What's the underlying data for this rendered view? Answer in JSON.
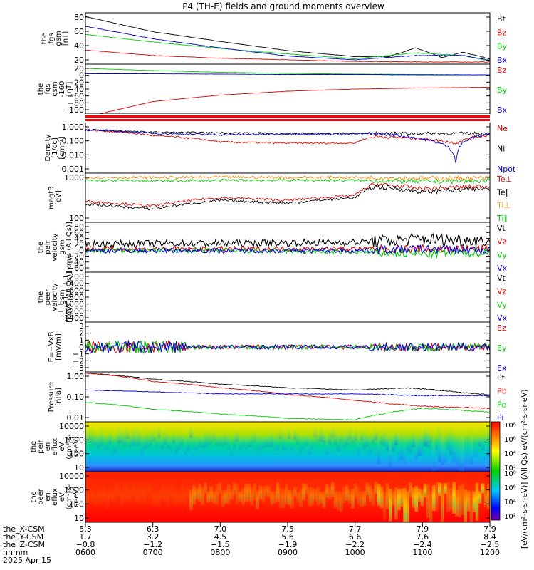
{
  "title": "P4 (TH-E) fields and ground moments overview",
  "colors": {
    "black": "#000000",
    "red": "#e00000",
    "green": "#00cc00",
    "blue": "#0000e0",
    "orange": "#ff8c00"
  },
  "panels": [
    {
      "id": "fgs",
      "ylabel": [
        "the",
        "fgs",
        "gsm",
        "[nT]"
      ],
      "yticks": [
        "80",
        "60",
        "40",
        "20"
      ],
      "legend": [
        {
          "t": "Bt",
          "c": "black"
        },
        {
          "t": "Bz",
          "c": "red"
        },
        {
          "t": "By",
          "c": "green"
        },
        {
          "t": "Bx",
          "c": "blue"
        }
      ]
    },
    {
      "id": "fgs2",
      "ylabel": [
        "the",
        "fgs",
        "gsm",
        "-160",
        "[nT]"
      ],
      "yticks": [
        "20",
        "0",
        "−20",
        "−40",
        "−60",
        "−80",
        "−100"
      ],
      "legend": [
        {
          "t": "Bz",
          "c": "red"
        },
        {
          "t": "By",
          "c": "green"
        },
        {
          "t": "Bx",
          "c": "blue"
        }
      ]
    },
    {
      "id": "density",
      "ylabel": [
        "Density",
        "[1/cc]",
        "[cm⁻³]"
      ],
      "yticks": [
        "1.000",
        "0.100",
        "0.010",
        "0.001"
      ],
      "legend": [
        {
          "t": "Ne",
          "c": "red"
        },
        {
          "t": "Ni",
          "c": "black"
        },
        {
          "t": "Npot",
          "c": "blue"
        }
      ]
    },
    {
      "id": "temp",
      "ylabel": [
        "magt3",
        "[eV]"
      ],
      "yticks": [
        "1000",
        "100"
      ],
      "legend": [
        {
          "t": "Te⊥",
          "c": "red"
        },
        {
          "t": "Te∥",
          "c": "black"
        },
        {
          "t": "Ti⊥",
          "c": "orange"
        },
        {
          "t": "Ti∥",
          "c": "green"
        }
      ]
    },
    {
      "id": "peir_v",
      "ylabel": [
        "the",
        "peir",
        "velocity",
        "gsm",
        "[km/s (All Qs)]"
      ],
      "yticks": [
        "80",
        "60",
        "40",
        "20",
        "0",
        "−20",
        "−40",
        "−60"
      ],
      "legend": [
        {
          "t": "Vt",
          "c": "black"
        },
        {
          "t": "Vz",
          "c": "red"
        },
        {
          "t": "Vy",
          "c": "green"
        },
        {
          "t": "Vx",
          "c": "blue"
        }
      ]
    },
    {
      "id": "peer_v",
      "ylabel": [
        "the",
        "peer",
        "velocity",
        "gsm",
        "[km/s (All Qs)]"
      ],
      "yticks": [
        "−200",
        "−400",
        "−600",
        "−800",
        "−1000",
        "−1200",
        "−1400"
      ],
      "legend": [
        {
          "t": "Vt",
          "c": "black"
        },
        {
          "t": "Vz",
          "c": "red"
        },
        {
          "t": "Vy",
          "c": "green"
        },
        {
          "t": "Vx",
          "c": "blue"
        }
      ]
    },
    {
      "id": "efield",
      "ylabel": [
        "E=−VxB",
        "[mV/m]"
      ],
      "yticks": [
        "3",
        "2",
        "1",
        "0",
        "−1",
        "−2",
        "−3"
      ],
      "legend": [
        {
          "t": "Ez",
          "c": "red"
        },
        {
          "t": "Ey",
          "c": "green"
        },
        {
          "t": "Ex",
          "c": "blue"
        }
      ]
    },
    {
      "id": "pressure",
      "ylabel": [
        "Pressure",
        "[nPa]"
      ],
      "yticks": [
        "1.00",
        "0.10",
        "0.01"
      ],
      "legend": [
        {
          "t": "Pt",
          "c": "black"
        },
        {
          "t": "Pb",
          "c": "red"
        },
        {
          "t": "Pe",
          "c": "green"
        },
        {
          "t": "Pi",
          "c": "blue"
        }
      ]
    },
    {
      "id": "peir_spec",
      "ylabel": [
        "the",
        "peir",
        "en",
        "eflux",
        "eV",
        "(cm²-s-",
        "sr-eV)"
      ],
      "yticks": [
        "10000",
        "1000",
        "100",
        "10"
      ]
    },
    {
      "id": "peer_spec",
      "ylabel": [
        "the",
        "peer",
        "en",
        "eflux",
        "eV",
        "(cm²-s-",
        "sr-eV)"
      ],
      "yticks": [
        "10000",
        "1000",
        "100",
        "10"
      ]
    }
  ],
  "colorbar": {
    "ticks": [
      "10⁸",
      "10⁶",
      "10⁴",
      "10²"
    ],
    "label": "[eV/(cm²-s-sr-eV)] (All Qs) eV/(cm²-s-sr-eV)"
  },
  "xaxis": {
    "row_labels": [
      "the_X-CSM",
      "the_Y-CSM",
      "the_Z-CSM",
      "hhmm",
      "2025 Apr 15"
    ],
    "x_csm": [
      "5.3",
      "6.3",
      "7.0",
      "7.5",
      "7.7",
      "7.9",
      "7.9"
    ],
    "y_csm": [
      "1.7",
      "3.2",
      "4.5",
      "5.6",
      "6.6",
      "7.6",
      "8.4"
    ],
    "z_csm": [
      "−0.8",
      "−1.2",
      "−1.5",
      "−1.9",
      "−2.2",
      "−2.4",
      "−2.5"
    ],
    "hhmm": [
      "0600",
      "0700",
      "0800",
      "0900",
      "1000",
      "1100",
      "1200"
    ]
  },
  "chart_data": {
    "type": "line",
    "title": "P4 (TH-E) fields and ground moments overview",
    "date": "2025 Apr 15",
    "x_time": [
      "0600",
      "0700",
      "0800",
      "0900",
      "1000",
      "1100",
      "1200"
    ],
    "panels": {
      "fgs_gsm_nT": {
        "ylim": [
          0,
          95
        ],
        "series": [
          {
            "name": "Bt",
            "x": [
              6,
              7,
              8,
              9,
              10,
              10.5,
              10.9,
              11.3,
              11.6,
              12
            ],
            "values": [
              88,
              60,
              42,
              25,
              14,
              14,
              30,
              12,
              22,
              10
            ]
          },
          {
            "name": "Bz",
            "x": [
              6,
              7,
              8,
              9,
              10,
              11,
              12
            ],
            "values": [
              26,
              16,
              11,
              8,
              5,
              4,
              4
            ]
          },
          {
            "name": "By",
            "x": [
              6,
              7,
              8,
              9,
              10,
              10.9,
              11.6,
              12
            ],
            "values": [
              55,
              41,
              29,
              19,
              10,
              21,
              16,
              6
            ]
          },
          {
            "name": "Bx",
            "x": [
              6,
              7,
              8,
              9,
              10,
              10.9,
              11.6,
              12
            ],
            "values": [
              70,
              47,
              30,
              15,
              8,
              16,
              16,
              7
            ]
          }
        ]
      },
      "fgs_gsm_minus160_nT": {
        "ylim": [
          -110,
          30
        ],
        "series": [
          {
            "name": "Bz",
            "x": [
              6,
              6.2,
              7,
              8,
              9,
              10,
              11,
              12
            ],
            "values": [
              -130,
              -110,
              -75,
              -57,
              -46,
              -40,
              -37,
              -35
            ]
          },
          {
            "name": "By",
            "x": [
              6,
              7,
              8,
              9,
              10,
              11,
              12
            ],
            "values": [
              18,
              12,
              7,
              4,
              2,
              1,
              0
            ]
          },
          {
            "name": "Bx",
            "x": [
              6,
              7,
              8,
              9,
              10,
              11,
              12
            ],
            "values": [
              3,
              3,
              2,
              1,
              1,
              0,
              0
            ]
          }
        ]
      },
      "density_cc": {
        "ylim": [
          0.0007,
          3
        ],
        "log": true,
        "series": [
          {
            "name": "Ne",
            "x": [
              6,
              7,
              8,
              9,
              10,
              10.3,
              11,
              11.5,
              12
            ],
            "values": [
              0.9,
              0.35,
              0.12,
              0.1,
              0.1,
              0.3,
              0.2,
              0.1,
              0.4
            ]
          },
          {
            "name": "Ni",
            "x": [
              6,
              7,
              8,
              9,
              10,
              11,
              12
            ],
            "values": [
              0.85,
              0.6,
              0.55,
              0.5,
              0.5,
              0.5,
              0.5
            ]
          },
          {
            "name": "Npot",
            "x": [
              6,
              7,
              8,
              9,
              10,
              10.3,
              11,
              11.5,
              12
            ],
            "values": [
              0.95,
              0.5,
              0.4,
              0.45,
              0.45,
              0.5,
              0.2,
              0.002,
              0.5
            ]
          }
        ]
      },
      "magt3_eV": {
        "ylim": [
          100,
          8000
        ],
        "log": true,
        "series": [
          {
            "name": "Te⊥",
            "x": [
              6,
              7,
              8,
              9,
              10,
              10.3,
              11,
              12
            ],
            "values": [
              650,
              420,
              900,
              700,
              1100,
              3000,
              2000,
              2500
            ]
          },
          {
            "name": "Te∥",
            "x": [
              6,
              7,
              8,
              9,
              10,
              10.3,
              11,
              12
            ],
            "values": [
              500,
              320,
              700,
              550,
              900,
              2400,
              1500,
              2000
            ]
          },
          {
            "name": "Ti⊥",
            "x": [
              6,
              7,
              8,
              9,
              10,
              11,
              12
            ],
            "values": [
              5500,
              5400,
              5600,
              5500,
              5500,
              5000,
              5200
            ]
          },
          {
            "name": "Ti∥",
            "x": [
              6,
              7,
              8,
              9,
              10,
              11,
              12
            ],
            "values": [
              4200,
              4000,
              4200,
              4300,
              4200,
              3800,
              4000
            ]
          }
        ]
      },
      "peir_velocity_gsm_kms": {
        "ylim": [
          -65,
          85
        ],
        "series": [
          {
            "name": "Vt",
            "x": [
              6,
              8,
              10,
              11,
              12
            ],
            "values": [
              20,
              22,
              25,
              35,
              30
            ]
          },
          {
            "name": "Vz",
            "x": [
              6,
              8,
              10,
              11,
              12
            ],
            "values": [
              5,
              5,
              5,
              5,
              5
            ]
          },
          {
            "name": "Vy",
            "x": [
              6,
              8,
              10,
              11,
              12
            ],
            "values": [
              0,
              0,
              -5,
              -10,
              -5
            ]
          },
          {
            "name": "Vx",
            "x": [
              6,
              8,
              10,
              11,
              12
            ],
            "values": [
              0,
              0,
              0,
              5,
              0
            ]
          }
        ]
      },
      "peer_velocity_gsm_kms": {
        "ylim": [
          -1450,
          -150
        ],
        "series": []
      },
      "e_vxb_mVm": {
        "ylim": [
          -3.2,
          3.2
        ],
        "series": [
          {
            "name": "Ez",
            "x": [
              6,
              7,
              8,
              10,
              12
            ],
            "values": [
              0,
              0,
              0,
              0,
              0
            ]
          },
          {
            "name": "Ey",
            "x": [
              6,
              7,
              8,
              10,
              12
            ],
            "values": [
              0,
              0,
              0,
              0,
              0
            ]
          },
          {
            "name": "Ex",
            "x": [
              6,
              7,
              8,
              10,
              12
            ],
            "values": [
              0,
              0,
              0,
              0,
              0
            ]
          }
        ]
      },
      "pressure_nPa": {
        "ylim": [
          0.008,
          3
        ],
        "log": true,
        "series": [
          {
            "name": "Pt",
            "x": [
              6,
              7,
              8,
              9,
              10,
              10.8,
              11.6,
              12
            ],
            "values": [
              2.6,
              1.25,
              0.7,
              0.45,
              0.35,
              0.45,
              0.25,
              0.2
            ]
          },
          {
            "name": "Pb",
            "x": [
              6,
              7,
              8,
              9,
              10,
              10.5,
              11,
              12
            ],
            "values": [
              2.6,
              0.95,
              0.45,
              0.2,
              0.1,
              0.07,
              0.05,
              0.04
            ]
          },
          {
            "name": "Pe",
            "x": [
              6,
              7,
              8,
              9,
              10,
              10.4,
              11,
              12
            ],
            "values": [
              0.08,
              0.035,
              0.02,
              0.012,
              0.01,
              0.02,
              0.04,
              0.025
            ]
          },
          {
            "name": "Pi",
            "x": [
              6,
              7,
              8,
              9,
              10,
              11,
              12
            ],
            "values": [
              0.35,
              0.28,
              0.22,
              0.22,
              0.22,
              0.18,
              0.18
            ]
          }
        ]
      }
    },
    "spectrograms": [
      {
        "name": "peir energy eflux",
        "ylim_eV": [
          7,
          18000
        ],
        "log": true
      },
      {
        "name": "peer energy eflux",
        "ylim_eV": [
          7,
          18000
        ],
        "log": true
      }
    ]
  }
}
